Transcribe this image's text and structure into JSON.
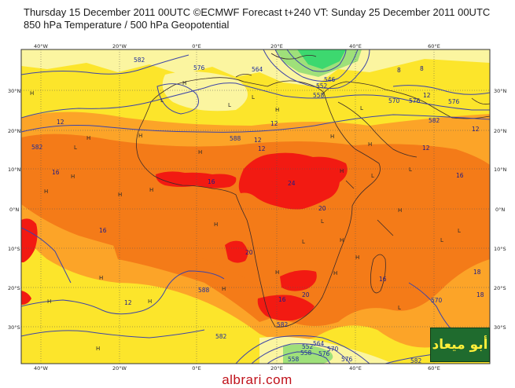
{
  "header": {
    "line1": "Thursday 15 December 2011 00UTC ©ECMWF Forecast t+240 VT: Sunday 25 December 2011 00UTC",
    "line2": "850 hPa Temperature / 500 hPa Geopotential"
  },
  "axes": {
    "lon_top": [
      "40°W",
      "20°W",
      "0°E",
      "20°E",
      "40°E",
      "60°E"
    ],
    "lon_bottom": [
      "40°W",
      "20°W",
      "0°E",
      "20°E",
      "40°E",
      "60°E"
    ],
    "lat_left": [
      "30°N",
      "20°N",
      "10°N",
      "0°N",
      "10°S",
      "20°S",
      "30°S"
    ],
    "lat_right": [
      "30°N",
      "20°N",
      "10°N",
      "0°N",
      "10°S",
      "20°S",
      "30°S"
    ]
  },
  "contour_labels": [
    "582",
    "576",
    "564",
    "558",
    "546",
    "552",
    "570",
    "576",
    "582",
    "582",
    "588",
    "588",
    "582",
    "582",
    "576",
    "576",
    "570",
    "564",
    "558",
    "558",
    "552",
    "570",
    "576",
    "582"
  ],
  "temperature_labels": [
    "12",
    "12",
    "12",
    "12",
    "12",
    "16",
    "16",
    "16",
    "16",
    "16",
    "18",
    "12",
    "20",
    "24",
    "20",
    "20",
    "16",
    "18",
    "12",
    "8",
    "8",
    "12"
  ],
  "pressure_marks": [
    "H",
    "H",
    "H",
    "H",
    "H",
    "H",
    "H",
    "H",
    "H",
    "H",
    "H",
    "H",
    "H",
    "H",
    "H",
    "H",
    "H",
    "H",
    "H",
    "H",
    "H",
    "H",
    "H",
    "H",
    "L",
    "L",
    "L",
    "L",
    "L",
    "L",
    "L",
    "L",
    "L",
    "L",
    "L",
    "L"
  ],
  "watermark": "albrari.com",
  "logo_text": "أبو ميعاد",
  "colors": {
    "yellow": "#fce52b",
    "light_yellow": "#fbf5a0",
    "orange_light": "#fca428",
    "orange": "#f47b18",
    "red": "#f21a12",
    "green": "#3dd86f",
    "contour": "#3c44a8",
    "coast": "#3a2a2a"
  }
}
